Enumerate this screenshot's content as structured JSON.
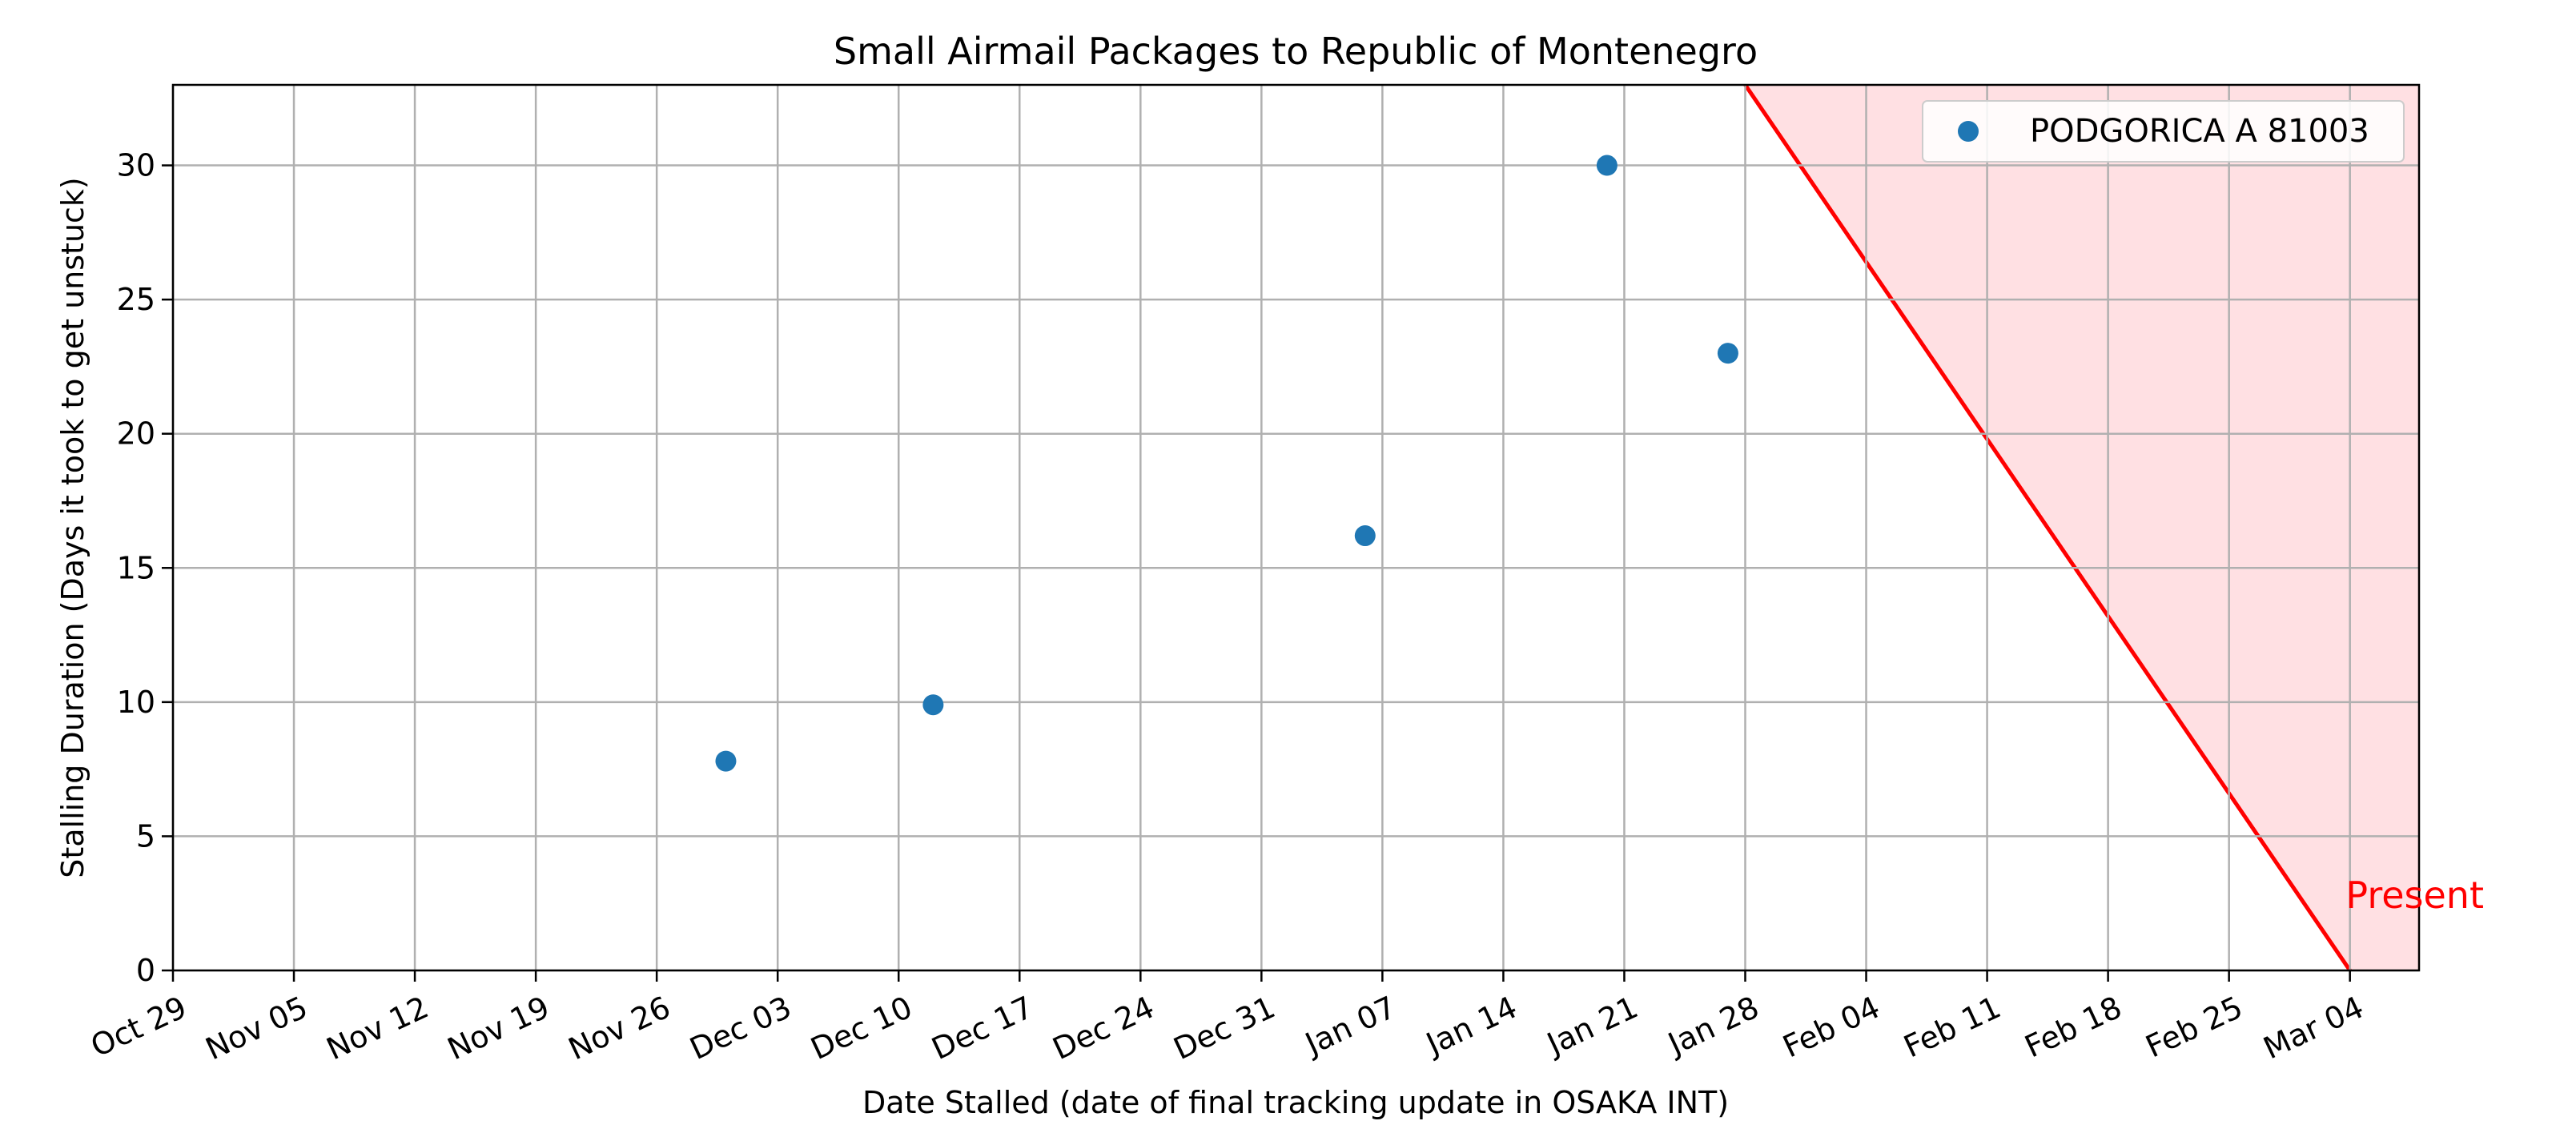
{
  "chart_data": {
    "type": "scatter",
    "title": "Small Airmail Packages to Republic of Montenegro",
    "xlabel": "Date Stalled (date of final tracking update in OSAKA INT)",
    "ylabel": "Stalling Duration (Days it took to get unstuck)",
    "xlim": [
      "2023-10-29",
      "2024-03-07"
    ],
    "ylim": [
      0,
      33
    ],
    "x_ticks": [
      "Oct 29",
      "Nov 05",
      "Nov 12",
      "Nov 19",
      "Nov 26",
      "Dec 03",
      "Dec 10",
      "Dec 17",
      "Dec 24",
      "Dec 31",
      "Jan 07",
      "Jan 14",
      "Jan 21",
      "Jan 28",
      "Feb 04",
      "Feb 11",
      "Feb 18",
      "Feb 25",
      "Mar 04"
    ],
    "y_ticks": [
      "0",
      "5",
      "10",
      "15",
      "20",
      "25",
      "30"
    ],
    "grid": true,
    "legend_position": "top-right",
    "series": [
      {
        "name": "PODGORICA A 81003",
        "color": "#1f77b4",
        "points": [
          {
            "x": "2023-11-30",
            "y": 7.8
          },
          {
            "x": "2023-12-12",
            "y": 9.9
          },
          {
            "x": "2024-01-06",
            "y": 16.2
          },
          {
            "x": "2024-01-20",
            "y": 30
          },
          {
            "x": "2024-01-27",
            "y": 23
          }
        ]
      }
    ],
    "present_line": {
      "label": "Present",
      "color": "#ff0000",
      "fill_color": "#ffe0e3",
      "points": [
        {
          "x": "2024-01-28",
          "y": 33
        },
        {
          "x": "2024-03-03",
          "y": 0
        }
      ]
    }
  }
}
